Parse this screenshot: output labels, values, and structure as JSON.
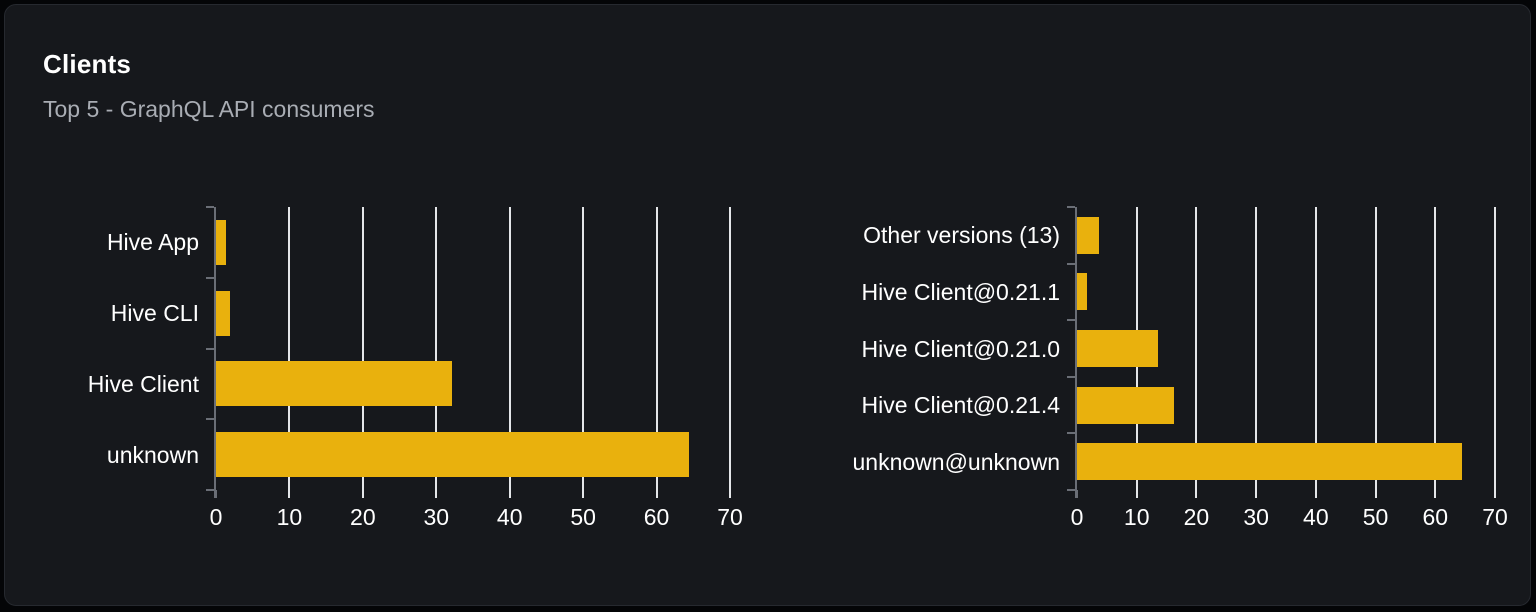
{
  "header": {
    "title": "Clients",
    "subtitle": "Top 5 - GraphQL API consumers"
  },
  "colors": {
    "page_bg": "#040507",
    "card_bg": "#16181c",
    "card_border": "#26292f",
    "bar": "#e9b10d",
    "gridline": "#e4e6e9",
    "axis": "#6a6e76",
    "title_text": "#ffffff",
    "subtitle_text": "#a9adb4",
    "label_text": "#ffffff"
  },
  "chart_data": [
    {
      "type": "bar",
      "orientation": "horizontal",
      "name": "clients-by-name",
      "categories_top_to_bottom": [
        "Hive App",
        "Hive CLI",
        "Hive Client",
        "unknown"
      ],
      "values": [
        1.4,
        1.9,
        32.2,
        64.4
      ],
      "xlim": [
        0,
        70
      ],
      "xticks": [
        0,
        10,
        20,
        30,
        40,
        50,
        60,
        70
      ],
      "grid": "vertical",
      "legend": "none"
    },
    {
      "type": "bar",
      "orientation": "horizontal",
      "name": "clients-by-version",
      "categories_top_to_bottom": [
        "Other versions (13)",
        "Hive Client@0.21.1",
        "Hive Client@0.21.0",
        "Hive Client@0.21.4",
        "unknown@unknown"
      ],
      "values": [
        3.7,
        1.6,
        13.5,
        16.3,
        64.5
      ],
      "xlim": [
        0,
        70
      ],
      "xticks": [
        0,
        10,
        20,
        30,
        40,
        50,
        60,
        70
      ],
      "grid": "vertical",
      "legend": "none"
    }
  ]
}
